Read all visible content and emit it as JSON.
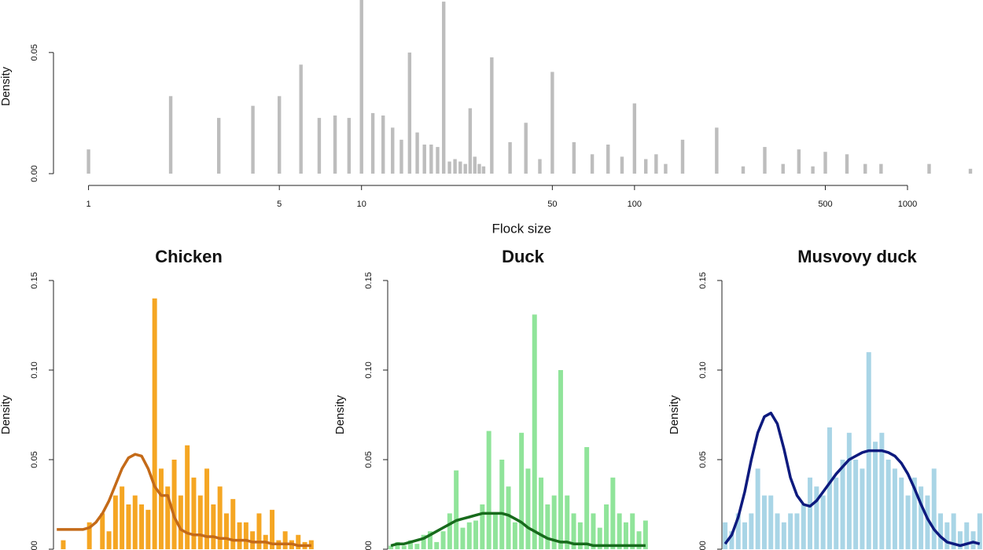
{
  "chart_data": [
    {
      "type": "bar",
      "xlabel": "Flock size",
      "ylabel": "Density",
      "color": "#bdbdbd",
      "log_x": true,
      "x": [
        1,
        2,
        3,
        4,
        5,
        6,
        7,
        8,
        9,
        10,
        11,
        12,
        13,
        14,
        15,
        16,
        17,
        18,
        19,
        20,
        21,
        22,
        23,
        24,
        25,
        26,
        27,
        28,
        30,
        35,
        40,
        45,
        50,
        60,
        70,
        80,
        90,
        100,
        110,
        120,
        130,
        150,
        200,
        250,
        300,
        350,
        400,
        450,
        500,
        600,
        700,
        800,
        1200,
        1700
      ],
      "values": [
        0.01,
        0.032,
        0.023,
        0.028,
        0.032,
        0.045,
        0.023,
        0.024,
        0.023,
        0.072,
        0.025,
        0.024,
        0.019,
        0.014,
        0.05,
        0.017,
        0.012,
        0.012,
        0.011,
        0.071,
        0.005,
        0.006,
        0.005,
        0.004,
        0.027,
        0.007,
        0.004,
        0.003,
        0.048,
        0.013,
        0.021,
        0.006,
        0.042,
        0.013,
        0.008,
        0.012,
        0.007,
        0.029,
        0.006,
        0.008,
        0.004,
        0.014,
        0.019,
        0.003,
        0.011,
        0.004,
        0.01,
        0.003,
        0.009,
        0.008,
        0.004,
        0.004,
        0.004,
        0.002
      ],
      "xlim": [
        0.92,
        1700
      ],
      "xticks": [
        1,
        5,
        10,
        50,
        100,
        500,
        1000
      ],
      "ylim": [
        0,
        0.072
      ],
      "yticks": [
        {
          "value": 0,
          "label": "0.00"
        },
        {
          "value": 0.05,
          "label": "0.05"
        }
      ]
    },
    {
      "type": "bar",
      "title": "Chicken",
      "ylabel": "Density",
      "color": "#f5a623",
      "density_color": "#c46a18",
      "categories": [
        null,
        null,
        null,
        null,
        null,
        null,
        null,
        null,
        null,
        null,
        null,
        null,
        null,
        null,
        null,
        null,
        null,
        null,
        null,
        null,
        null,
        null,
        null,
        null,
        null,
        null,
        null,
        null,
        null,
        null,
        null,
        null,
        null,
        null,
        null,
        null,
        null,
        null,
        null,
        null
      ],
      "values": [
        0,
        0.005,
        0,
        0,
        0,
        0.015,
        0,
        0.02,
        0.01,
        0.03,
        0.035,
        0.025,
        0.03,
        0.025,
        0.022,
        0.14,
        0.045,
        0.035,
        0.05,
        0.03,
        0.058,
        0.04,
        0.03,
        0.045,
        0.025,
        0.035,
        0.02,
        0.028,
        0.015,
        0.015,
        0.01,
        0.02,
        0.008,
        0.022,
        0.005,
        0.01,
        0.005,
        0.008,
        0.004,
        0.005
      ],
      "density": [
        0.011,
        0.011,
        0.011,
        0.011,
        0.011,
        0.012,
        0.015,
        0.02,
        0.027,
        0.036,
        0.045,
        0.051,
        0.053,
        0.052,
        0.045,
        0.035,
        0.03,
        0.03,
        0.018,
        0.011,
        0.009,
        0.008,
        0.008,
        0.007,
        0.007,
        0.006,
        0.006,
        0.005,
        0.005,
        0.005,
        0.004,
        0.004,
        0.004,
        0.003,
        0.003,
        0.003,
        0.003,
        0.002,
        0.002,
        0.002
      ],
      "ylim": [
        0,
        0.15
      ],
      "yticks": [
        {
          "value": 0,
          "label": "0.00"
        },
        {
          "value": 0.05,
          "label": "0.05"
        },
        {
          "value": 0.1,
          "label": "0.10"
        },
        {
          "value": 0.15,
          "label": "0.15"
        }
      ]
    },
    {
      "type": "bar",
      "title": "Duck",
      "ylabel": "Density",
      "color": "#90e49a",
      "density_color": "#176b1c",
      "categories": [
        null,
        null,
        null,
        null,
        null,
        null,
        null,
        null,
        null,
        null,
        null,
        null,
        null,
        null,
        null,
        null,
        null,
        null,
        null,
        null,
        null,
        null,
        null,
        null,
        null,
        null,
        null,
        null,
        null,
        null,
        null,
        null,
        null,
        null,
        null,
        null,
        null,
        null,
        null,
        null
      ],
      "values": [
        0.002,
        0.004,
        0.002,
        0.005,
        0.003,
        0.008,
        0.01,
        0.004,
        0.01,
        0.02,
        0.044,
        0.012,
        0.015,
        0.016,
        0.025,
        0.066,
        0.02,
        0.05,
        0.035,
        0.015,
        0.065,
        0.045,
        0.131,
        0.04,
        0.025,
        0.03,
        0.1,
        0.03,
        0.02,
        0.015,
        0.057,
        0.02,
        0.012,
        0.025,
        0.04,
        0.02,
        0.015,
        0.02,
        0.01,
        0.016
      ],
      "density": [
        0.002,
        0.003,
        0.003,
        0.004,
        0.005,
        0.006,
        0.008,
        0.01,
        0.012,
        0.014,
        0.016,
        0.017,
        0.018,
        0.019,
        0.02,
        0.02,
        0.02,
        0.02,
        0.019,
        0.017,
        0.015,
        0.012,
        0.01,
        0.008,
        0.006,
        0.005,
        0.004,
        0.004,
        0.003,
        0.003,
        0.003,
        0.002,
        0.002,
        0.002,
        0.002,
        0.002,
        0.002,
        0.002,
        0.002,
        0.002
      ],
      "ylim": [
        0,
        0.15
      ],
      "yticks": [
        {
          "value": 0,
          "label": "0.00"
        },
        {
          "value": 0.05,
          "label": "0.05"
        },
        {
          "value": 0.1,
          "label": "0.10"
        },
        {
          "value": 0.15,
          "label": "0.15"
        }
      ]
    },
    {
      "type": "bar",
      "title": "Musvovy duck",
      "ylabel": "Density",
      "color": "#a9d5e6",
      "density_color": "#0d1a7e",
      "categories": [
        null,
        null,
        null,
        null,
        null,
        null,
        null,
        null,
        null,
        null,
        null,
        null,
        null,
        null,
        null,
        null,
        null,
        null,
        null,
        null,
        null,
        null,
        null,
        null,
        null,
        null,
        null,
        null,
        null,
        null,
        null,
        null,
        null,
        null,
        null,
        null,
        null,
        null,
        null,
        null
      ],
      "values": [
        0.015,
        0.01,
        0.02,
        0.015,
        0.02,
        0.045,
        0.03,
        0.03,
        0.02,
        0.015,
        0.02,
        0.02,
        0.025,
        0.04,
        0.035,
        0.03,
        0.068,
        0.04,
        0.05,
        0.065,
        0.05,
        0.045,
        0.11,
        0.06,
        0.065,
        0.05,
        0.045,
        0.04,
        0.03,
        0.04,
        0.035,
        0.03,
        0.045,
        0.02,
        0.015,
        0.02,
        0.01,
        0.015,
        0.01,
        0.02
      ],
      "density": [
        0.003,
        0.008,
        0.018,
        0.032,
        0.05,
        0.065,
        0.074,
        0.076,
        0.07,
        0.056,
        0.04,
        0.03,
        0.025,
        0.024,
        0.027,
        0.032,
        0.037,
        0.042,
        0.046,
        0.05,
        0.052,
        0.054,
        0.055,
        0.055,
        0.055,
        0.054,
        0.052,
        0.048,
        0.042,
        0.034,
        0.025,
        0.017,
        0.011,
        0.007,
        0.004,
        0.003,
        0.002,
        0.003,
        0.004,
        0.003
      ],
      "ylim": [
        0,
        0.15
      ],
      "yticks": [
        {
          "value": 0,
          "label": "0.00"
        },
        {
          "value": 0.05,
          "label": "0.05"
        },
        {
          "value": 0.1,
          "label": "0.10"
        },
        {
          "value": 0.15,
          "label": "0.15"
        }
      ]
    }
  ]
}
